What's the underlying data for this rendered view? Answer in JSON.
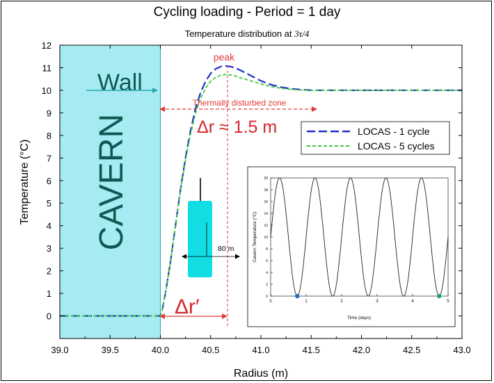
{
  "chart_data": {
    "type": "line",
    "title": "Cycling loading - Period = 1 day",
    "subtitle_text": "Temperature distribution at ",
    "subtitle_math": "3τ/4",
    "xlabel": "Radius (m)",
    "ylabel": "Temperature (°C)",
    "xlim": [
      39.0,
      43.0
    ],
    "ylim": [
      -1,
      12
    ],
    "xticks": [
      39.0,
      39.5,
      40.0,
      40.5,
      41.0,
      41.5,
      42.0,
      42.5,
      43.0
    ],
    "xtick_labels": [
      "39.0",
      "39.5",
      "40.0",
      "40.5",
      "41.0",
      "41.5",
      "42.0",
      "42.5",
      "43.0"
    ],
    "yticks": [
      0,
      1,
      2,
      3,
      4,
      5,
      6,
      7,
      8,
      9,
      10,
      11,
      12
    ],
    "ytick_labels": [
      "0",
      "1",
      "2",
      "3",
      "4",
      "5",
      "6",
      "7",
      "8",
      "9",
      "10",
      "11",
      "12"
    ],
    "grid": false,
    "legend_position": "right",
    "cavern": {
      "x_from": 39.0,
      "x_to": 40.0,
      "label": "CAVERN",
      "color": "#a6ebf1"
    },
    "series": [
      {
        "name": "LOCAS - 1 cycle",
        "color": "#1c2fc8",
        "dash": "long",
        "x": [
          39.0,
          40.0,
          40.02,
          40.05,
          40.1,
          40.15,
          40.2,
          40.25,
          40.3,
          40.35,
          40.4,
          40.45,
          40.5,
          40.55,
          40.6,
          40.65,
          40.7,
          40.75,
          40.8,
          40.9,
          41.0,
          41.1,
          41.2,
          41.3,
          41.4,
          41.5,
          41.7,
          42.0,
          42.5,
          43.0
        ],
        "values": [
          0,
          0,
          0.3,
          1.0,
          2.4,
          4.0,
          5.6,
          7.0,
          8.2,
          9.2,
          9.9,
          10.4,
          10.75,
          10.95,
          11.05,
          11.08,
          11.05,
          10.98,
          10.88,
          10.65,
          10.42,
          10.25,
          10.14,
          10.07,
          10.03,
          10.0,
          10.0,
          10.0,
          10.0,
          10.0
        ]
      },
      {
        "name": "LOCAS - 5 cycles",
        "color": "#3ec83a",
        "dash": "short",
        "x": [
          39.0,
          40.0,
          40.02,
          40.05,
          40.1,
          40.15,
          40.2,
          40.25,
          40.3,
          40.35,
          40.4,
          40.45,
          40.5,
          40.55,
          40.6,
          40.65,
          40.7,
          40.75,
          40.8,
          40.9,
          41.0,
          41.1,
          41.2,
          41.3,
          41.4,
          41.5,
          41.7,
          42.0,
          42.5,
          43.0
        ],
        "values": [
          0,
          0,
          0.3,
          1.0,
          2.4,
          4.0,
          5.55,
          6.9,
          8.05,
          9.0,
          9.65,
          10.1,
          10.4,
          10.58,
          10.67,
          10.7,
          10.68,
          10.63,
          10.55,
          10.42,
          10.28,
          10.17,
          10.09,
          10.04,
          10.01,
          10.0,
          10.0,
          10.0,
          10.0,
          10.0
        ]
      }
    ],
    "annotations": {
      "wall": "Wall",
      "peak": "peak",
      "zone": "Thermally disturbed zone",
      "delta_r": "Δr ≈ 1.5 m",
      "delta_r_prime": "Δr′",
      "height": "80 m"
    },
    "inset": {
      "type": "line",
      "xlabel": "Time (days)",
      "ylabel": "Cavern Temperature (°C)",
      "xlim": [
        0,
        5
      ],
      "ylim": [
        0,
        20
      ],
      "xticks": [
        0,
        1,
        2,
        3,
        4,
        5
      ],
      "xtick_labels": [
        "0",
        "1",
        "2",
        "3",
        "4",
        "5"
      ],
      "yticks": [
        0,
        2,
        4,
        6,
        8,
        10,
        12,
        14,
        16,
        18,
        20
      ],
      "ytick_labels": [
        "0",
        "2",
        "4",
        "6",
        "8",
        "10",
        "12",
        "14",
        "16",
        "18",
        "20"
      ],
      "period_days": 1,
      "mean": 10,
      "amplitude": 10,
      "markers": [
        {
          "x": 0.75,
          "y": 0,
          "color": "#1c6fc0"
        },
        {
          "x": 4.75,
          "y": 0,
          "color": "#17a37a"
        }
      ]
    }
  }
}
